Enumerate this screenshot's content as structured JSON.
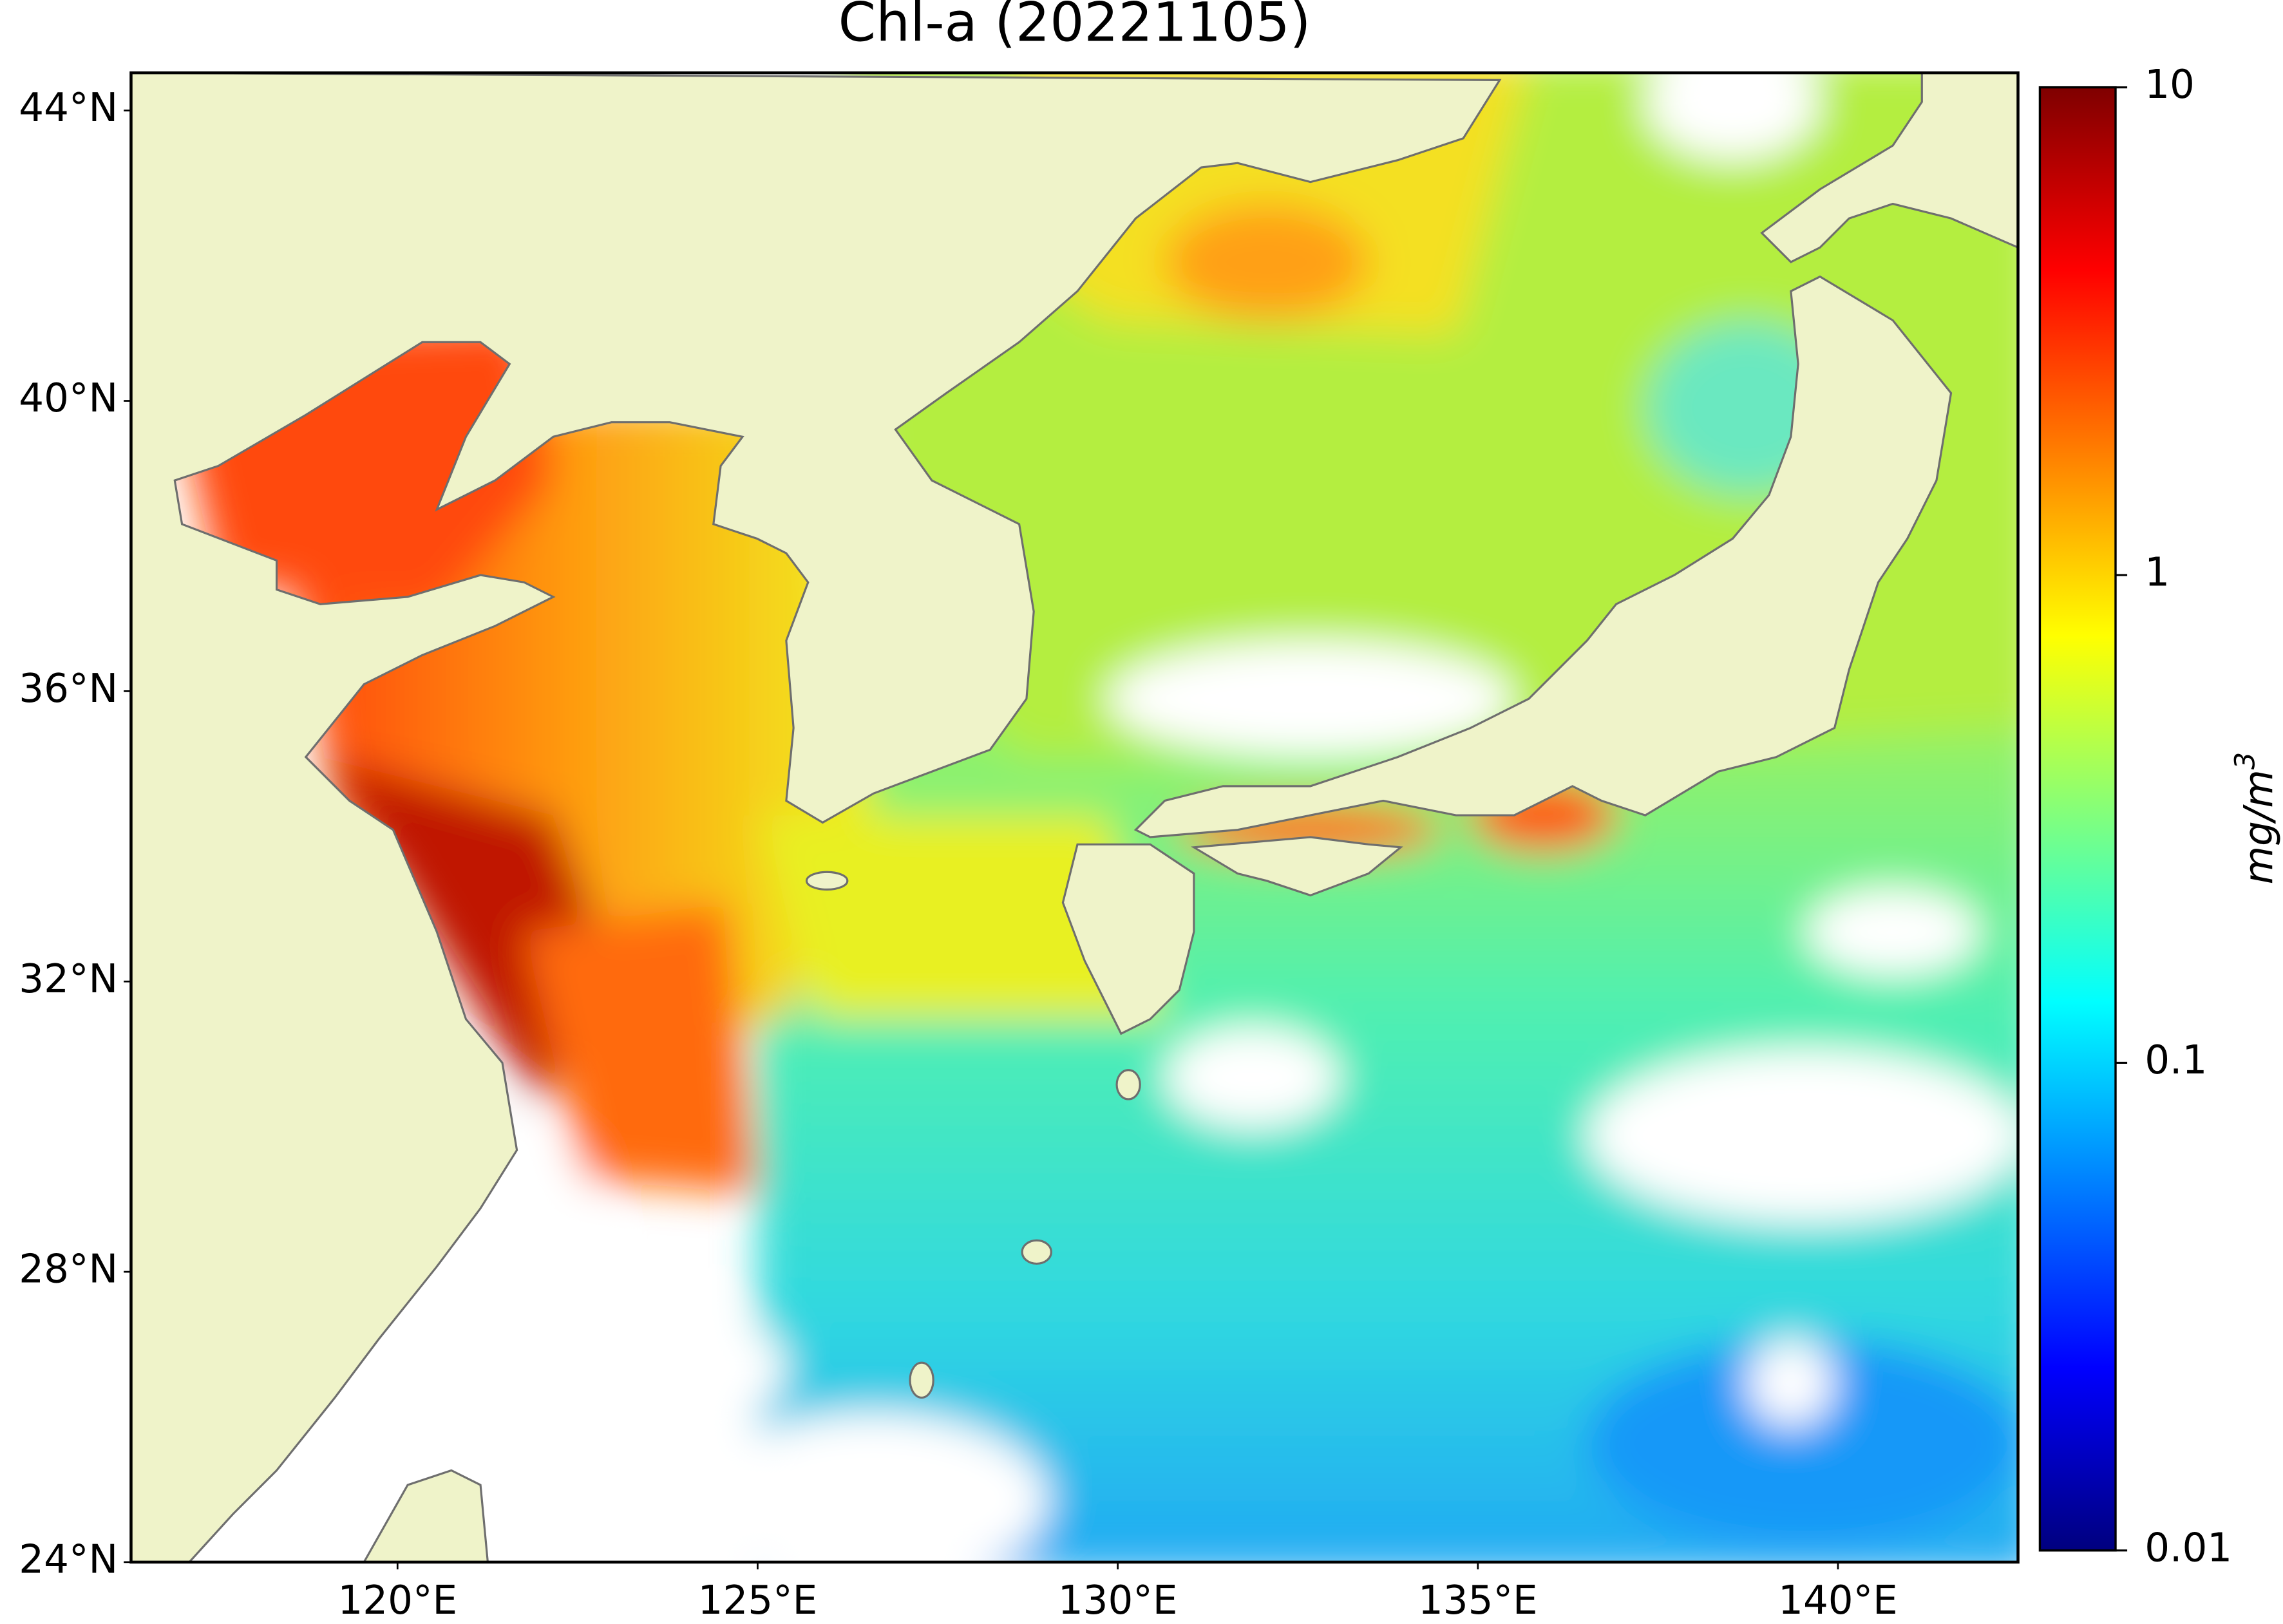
{
  "chart_data": {
    "type": "map",
    "title": "Chl-a (20221105)",
    "xlim": [
      116.3,
      142.5
    ],
    "ylim": [
      24,
      44.52
    ],
    "xticks": [
      {
        "value": 120,
        "label": "120°E"
      },
      {
        "value": 125,
        "label": "125°E"
      },
      {
        "value": 130,
        "label": "130°E"
      },
      {
        "value": 135,
        "label": "135°E"
      },
      {
        "value": 140,
        "label": "140°E"
      }
    ],
    "yticks": [
      {
        "value": 24,
        "label": "24°N"
      },
      {
        "value": 28,
        "label": "28°N"
      },
      {
        "value": 32,
        "label": "32°N"
      },
      {
        "value": 36,
        "label": "36°N"
      },
      {
        "value": 40,
        "label": "40°N"
      },
      {
        "value": 44,
        "label": "44°N"
      }
    ],
    "colorbar": {
      "colormap": "jet",
      "log_scale": true,
      "lim": [
        0.01,
        10
      ],
      "ticks": [
        0.01,
        0.1,
        1,
        10
      ],
      "label": "mg/m",
      "label_superscript": "3"
    }
  }
}
